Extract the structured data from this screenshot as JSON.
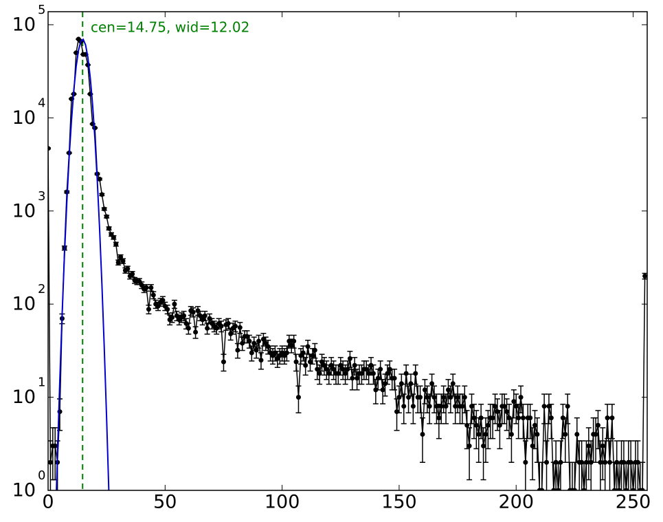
{
  "chart_data": {
    "type": "errorbar",
    "annotation": "cen=14.75, wid=12.02",
    "annotation_color": "#008000",
    "center_line_x": 14.75,
    "log_y": true,
    "xlim": [
      0,
      256
    ],
    "ylim": [
      1,
      138000
    ],
    "xticks": [
      0,
      50,
      100,
      150,
      200,
      250
    ],
    "yticks": [
      {
        "value": 1,
        "label": "10",
        "sup": "0"
      },
      {
        "value": 10,
        "label": "10",
        "sup": "1"
      },
      {
        "value": 100,
        "label": "10",
        "sup": "2"
      },
      {
        "value": 1000,
        "label": "10",
        "sup": "3"
      },
      {
        "value": 10000,
        "label": "10",
        "sup": "4"
      },
      {
        "value": 100000,
        "label": "10",
        "sup": "5"
      }
    ],
    "series": [
      {
        "color": "#000000",
        "style": "points",
        "x": [
          0,
          1,
          2,
          3,
          4,
          5,
          6,
          7,
          8,
          9,
          10,
          11,
          12,
          13,
          14,
          15,
          16,
          17,
          18,
          19,
          20,
          21,
          22,
          23,
          24,
          25,
          26,
          27,
          28,
          29,
          30,
          31,
          32,
          33,
          34,
          35,
          36,
          37,
          38,
          39,
          40,
          41,
          42,
          43,
          44,
          45,
          46,
          47,
          48,
          49,
          50,
          51,
          52,
          53,
          54,
          55,
          56,
          57,
          58,
          59,
          60,
          61,
          62,
          63,
          64,
          65,
          66,
          67,
          68,
          69,
          70,
          71,
          72,
          73,
          74,
          75,
          76,
          77,
          78,
          79,
          80,
          81,
          82,
          83,
          84,
          85,
          86,
          87,
          88,
          89,
          90,
          91,
          92,
          93,
          94,
          95,
          96,
          97,
          98,
          99,
          100,
          101,
          102,
          103,
          104,
          105,
          106,
          107,
          108,
          109,
          110,
          111,
          112,
          113,
          114,
          115,
          116,
          117,
          118,
          119,
          120,
          121,
          122,
          123,
          124,
          125,
          126,
          127,
          128,
          129,
          130,
          131,
          132,
          133,
          134,
          135,
          136,
          137,
          138,
          139,
          140,
          141,
          142,
          143,
          144,
          145,
          146,
          147,
          148,
          149,
          150,
          151,
          152,
          153,
          154,
          155,
          156,
          157,
          158,
          159,
          160,
          161,
          162,
          163,
          164,
          165,
          166,
          167,
          168,
          169,
          170,
          171,
          172,
          173,
          174,
          175,
          176,
          177,
          178,
          179,
          180,
          181,
          182,
          183,
          184,
          185,
          186,
          187,
          188,
          189,
          190,
          191,
          192,
          193,
          194,
          195,
          196,
          197,
          198,
          199,
          200,
          201,
          202,
          203,
          204,
          205,
          206,
          207,
          208,
          209,
          210,
          211,
          212,
          213,
          214,
          215,
          216,
          217,
          218,
          219,
          220,
          221,
          222,
          223,
          224,
          225,
          226,
          227,
          228,
          229,
          230,
          231,
          232,
          233,
          234,
          235,
          236,
          237,
          238,
          239,
          240,
          241,
          242,
          243,
          244,
          245,
          246,
          247,
          248,
          249,
          250,
          251,
          252,
          253,
          254,
          255
        ],
        "values": [
          4700,
          2,
          3,
          3,
          2,
          7,
          70,
          400,
          1600,
          4200,
          16000,
          18000,
          50000,
          70000,
          66000,
          48000,
          48000,
          37000,
          18000,
          8600,
          7800,
          2500,
          2200,
          1500,
          1050,
          870,
          650,
          560,
          520,
          440,
          280,
          320,
          290,
          230,
          240,
          200,
          210,
          180,
          175,
          175,
          160,
          145,
          150,
          88,
          150,
          125,
          100,
          95,
          105,
          110,
          95,
          88,
          68,
          72,
          100,
          75,
          68,
          72,
          75,
          62,
          55,
          85,
          82,
          50,
          85,
          75,
          68,
          75,
          55,
          70,
          62,
          58,
          55,
          62,
          58,
          24,
          60,
          62,
          48,
          55,
          58,
          32,
          56,
          38,
          45,
          45,
          40,
          30,
          38,
          32,
          40,
          25,
          42,
          38,
          35,
          30,
          28,
          30,
          26,
          28,
          30,
          28,
          30,
          40,
          36,
          40,
          24,
          10,
          28,
          30,
          22,
          35,
          24,
          28,
          32,
          20,
          18,
          24,
          22,
          20,
          18,
          22,
          20,
          18,
          18,
          22,
          20,
          18,
          20,
          26,
          16,
          22,
          16,
          18,
          18,
          20,
          20,
          18,
          22,
          18,
          12,
          16,
          20,
          12,
          14,
          18,
          20,
          16,
          16,
          7,
          10,
          14,
          8,
          18,
          10,
          14,
          8,
          18,
          10,
          10,
          4,
          12,
          10,
          8,
          14,
          10,
          8,
          6,
          8,
          10,
          8,
          12,
          10,
          14,
          8,
          10,
          8,
          8,
          10,
          5,
          3,
          8,
          6,
          5,
          4,
          6,
          3,
          4,
          5,
          6,
          6,
          8,
          7,
          5,
          8,
          8,
          7,
          6,
          4,
          9,
          8,
          6,
          10,
          6,
          2,
          6,
          6,
          3,
          5,
          4,
          1,
          1,
          8,
          2,
          8,
          6,
          1,
          2,
          1,
          2,
          6,
          4,
          8,
          1,
          1,
          1,
          4,
          2,
          2,
          1,
          2,
          3,
          2,
          4,
          4,
          5,
          2,
          3,
          2,
          6,
          2,
          6,
          1,
          2,
          1,
          2,
          2,
          1,
          2,
          2,
          1,
          2,
          2,
          1,
          1,
          200
        ],
        "errors": [
          69,
          1.4,
          1.7,
          1.7,
          1.4,
          2.6,
          8.4,
          20,
          40,
          65,
          126,
          134,
          224,
          265,
          257,
          219,
          219,
          192,
          134,
          93,
          88,
          50,
          47,
          39,
          32,
          29,
          25,
          24,
          23,
          21,
          17,
          18,
          17,
          15,
          15,
          14,
          14,
          13,
          13,
          13,
          13,
          12,
          12,
          9.4,
          12,
          11,
          10,
          9.7,
          10,
          10.5,
          9.7,
          9.4,
          8.2,
          8.5,
          10,
          8.7,
          8.2,
          8.5,
          8.7,
          7.9,
          7.4,
          9.2,
          9.1,
          7.1,
          9.2,
          8.7,
          8.2,
          8.7,
          7.4,
          8.4,
          7.9,
          7.6,
          7.4,
          7.9,
          7.6,
          4.9,
          7.7,
          7.9,
          6.9,
          7.4,
          7.6,
          5.7,
          7.5,
          6.2,
          6.7,
          6.7,
          6.3,
          5.5,
          6.2,
          5.7,
          6.3,
          5,
          6.5,
          6.2,
          5.9,
          5.5,
          5.3,
          5.5,
          5.1,
          5.3,
          5.5,
          5.3,
          5.5,
          6.3,
          6,
          6.3,
          4.9,
          3.2,
          5.3,
          5.5,
          4.7,
          5.9,
          4.9,
          5.3,
          5.7,
          4.5,
          4.2,
          4.9,
          4.7,
          4.5,
          4.2,
          4.7,
          4.5,
          4.2,
          4.2,
          4.7,
          4.5,
          4.2,
          4.5,
          5.1,
          4,
          4.7,
          4,
          4.2,
          4.2,
          4.5,
          4.5,
          4.2,
          4.7,
          4.2,
          3.5,
          4,
          4.5,
          3.5,
          3.7,
          4.2,
          4.5,
          4,
          4,
          2.6,
          3.2,
          3.7,
          2.8,
          4.2,
          3.2,
          3.7,
          2.8,
          4.2,
          3.2,
          3.2,
          2,
          3.5,
          3.2,
          2.8,
          3.7,
          3.2,
          2.8,
          2.4,
          2.8,
          3.2,
          2.8,
          3.5,
          3.2,
          3.7,
          2.8,
          3.2,
          2.8,
          2.8,
          3.2,
          2.2,
          1.7,
          2.8,
          2.4,
          2.2,
          2,
          2.4,
          1.7,
          2,
          2.2,
          2.4,
          2.4,
          2.8,
          2.6,
          2.2,
          2.8,
          2.8,
          2.6,
          2.4,
          2,
          3,
          2.8,
          2.4,
          3.2,
          2.4,
          1.4,
          2.4,
          2.4,
          1.7,
          2.2,
          2,
          1,
          1,
          2.8,
          1.4,
          2.8,
          2.4,
          1,
          1.4,
          1,
          1.4,
          2.4,
          2,
          2.8,
          1,
          1,
          1,
          2,
          1.4,
          1.4,
          1,
          1.4,
          1.7,
          1.4,
          2,
          2,
          2.2,
          1.4,
          1.7,
          1.4,
          2.4,
          1.4,
          2.4,
          1,
          1.4,
          1,
          1.4,
          1.4,
          1,
          1.4,
          1.4,
          1,
          1.4,
          1.4,
          1,
          1,
          14
        ]
      },
      {
        "color": "#0000cc",
        "style": "line",
        "x": [
          3.5,
          4,
          5,
          6,
          7,
          8,
          9,
          10,
          11,
          12,
          13,
          14,
          15,
          16,
          17,
          18,
          19,
          20,
          21,
          22,
          23,
          24,
          25,
          26
        ],
        "values": [
          0.9,
          2.4,
          15,
          78,
          342,
          1240,
          3800,
          9400,
          20000,
          35700,
          53300,
          66600,
          69600,
          60900,
          44600,
          27300,
          14000,
          6000,
          2160,
          650,
          163,
          34,
          6,
          0.9
        ]
      }
    ]
  }
}
